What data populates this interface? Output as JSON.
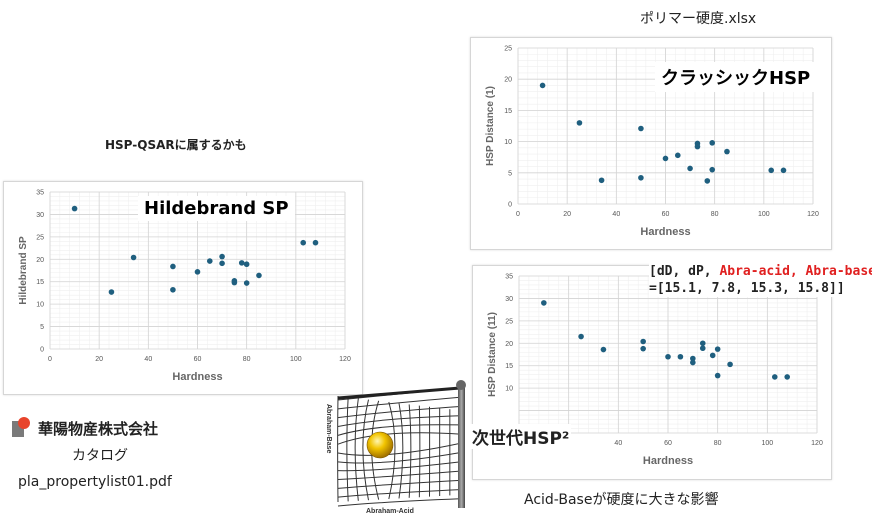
{
  "texts": {
    "file_name": "ポリマー硬度.xlsx",
    "qsar_note": "HSP-QSARに属するかも",
    "company": "華陽物産株式会社",
    "catalog": "カタログ",
    "pdf_name": "pla_propertylist01.pdf",
    "acid_base_note": "Acid-Baseが硬度に大きな影響",
    "formula_line1_a": "[dD, dP, ",
    "formula_line1_red": "Abra-acid, Abra-base",
    "formula_line1_b": "]",
    "formula_line2": "=[15.1, 7.8, 15.3, 15.8]]",
    "net_label_base": "Abraham-Base",
    "net_label_acid": "Abraham-Acid"
  },
  "chart_data": [
    {
      "id": "hildebrand",
      "type": "scatter",
      "title": "Hildebrand SP",
      "xlabel": "Hardness",
      "ylabel": "Hildebrand SP",
      "xlim": [
        0,
        120
      ],
      "ylim": [
        0,
        35
      ],
      "xticks": [
        0,
        20,
        40,
        60,
        80,
        100,
        120
      ],
      "yticks": [
        0,
        5,
        10,
        15,
        20,
        25,
        30,
        35
      ],
      "grid": true,
      "color": "#1f5f7f",
      "points": [
        [
          10,
          31.3
        ],
        [
          25,
          12.7
        ],
        [
          34,
          20.4
        ],
        [
          50,
          18.4
        ],
        [
          50,
          13.2
        ],
        [
          60,
          17.2
        ],
        [
          65,
          19.6
        ],
        [
          70,
          20.6
        ],
        [
          70,
          19.1
        ],
        [
          75,
          15.2
        ],
        [
          75,
          14.8
        ],
        [
          78,
          19.2
        ],
        [
          80,
          18.9
        ],
        [
          80,
          14.7
        ],
        [
          85,
          16.4
        ],
        [
          103,
          23.7
        ],
        [
          108,
          23.7
        ]
      ]
    },
    {
      "id": "classic",
      "type": "scatter",
      "title": "クラッシックHSP",
      "xlabel": "Hardness",
      "ylabel": "HSP Distance (1)",
      "xlim": [
        0,
        120
      ],
      "ylim": [
        0,
        25
      ],
      "xticks": [
        0,
        20,
        40,
        60,
        80,
        100,
        120
      ],
      "yticks": [
        0,
        5,
        10,
        15,
        20,
        25
      ],
      "grid": true,
      "color": "#1f5f7f",
      "points": [
        [
          10,
          19.0
        ],
        [
          25,
          13.0
        ],
        [
          34,
          3.8
        ],
        [
          50,
          12.1
        ],
        [
          50,
          4.2
        ],
        [
          60,
          7.3
        ],
        [
          65,
          7.8
        ],
        [
          70,
          5.7
        ],
        [
          73,
          9.7
        ],
        [
          73,
          9.2
        ],
        [
          77,
          3.7
        ],
        [
          79,
          9.8
        ],
        [
          79,
          5.5
        ],
        [
          85,
          8.4
        ],
        [
          103,
          5.4
        ],
        [
          108,
          5.4
        ]
      ]
    },
    {
      "id": "nextgen",
      "type": "scatter",
      "title": "次世代HSP²",
      "xlabel": "Hardness",
      "ylabel": "HSP Distance (11)",
      "xlim": [
        0,
        120
      ],
      "ylim": [
        0,
        35
      ],
      "xticks": [
        40,
        60,
        80,
        100,
        120
      ],
      "yticks": [
        10,
        15,
        20,
        25,
        30,
        35
      ],
      "grid": true,
      "color": "#1f5f7f",
      "points": [
        [
          10,
          29.0
        ],
        [
          25,
          21.5
        ],
        [
          34,
          18.6
        ],
        [
          50,
          20.4
        ],
        [
          50,
          18.8
        ],
        [
          60,
          17.0
        ],
        [
          65,
          17.0
        ],
        [
          70,
          16.6
        ],
        [
          70,
          15.7
        ],
        [
          74,
          20.0
        ],
        [
          74,
          18.9
        ],
        [
          78,
          17.3
        ],
        [
          80,
          18.7
        ],
        [
          80,
          12.8
        ],
        [
          85,
          15.3
        ],
        [
          103,
          12.5
        ],
        [
          108,
          12.5
        ]
      ]
    }
  ]
}
